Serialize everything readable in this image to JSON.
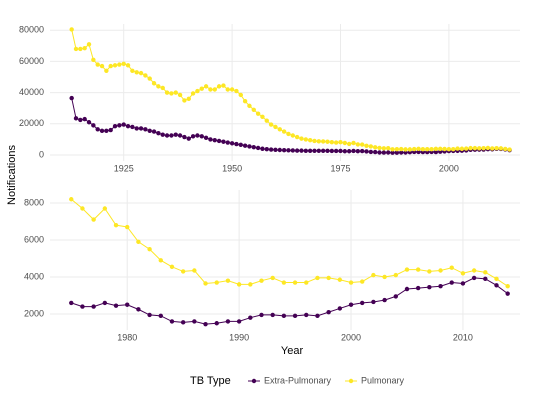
{
  "shared": {
    "y_label": "Notifications",
    "x_label": "Year",
    "legend_title": "TB Type"
  },
  "chart_data": [
    {
      "type": "line",
      "xlim": [
        1908,
        2016.4
      ],
      "ylim": [
        -3850,
        84000
      ],
      "xticks": [
        1925,
        1950,
        1975,
        2000
      ],
      "yticks": [
        0,
        20000,
        40000,
        60000,
        80000
      ],
      "grid": true,
      "x": [
        1913,
        1914,
        1915,
        1916,
        1917,
        1918,
        1919,
        1920,
        1921,
        1922,
        1923,
        1924,
        1925,
        1926,
        1927,
        1928,
        1929,
        1930,
        1931,
        1932,
        1933,
        1934,
        1935,
        1936,
        1937,
        1938,
        1939,
        1940,
        1941,
        1942,
        1943,
        1944,
        1945,
        1946,
        1947,
        1948,
        1949,
        1950,
        1951,
        1952,
        1953,
        1954,
        1955,
        1956,
        1957,
        1958,
        1959,
        1960,
        1961,
        1962,
        1963,
        1964,
        1965,
        1966,
        1967,
        1968,
        1969,
        1970,
        1971,
        1972,
        1973,
        1974,
        1975,
        1976,
        1977,
        1978,
        1979,
        1980,
        1981,
        1982,
        1983,
        1984,
        1985,
        1986,
        1987,
        1988,
        1989,
        1990,
        1991,
        1992,
        1993,
        1994,
        1995,
        1996,
        1997,
        1998,
        1999,
        2000,
        2001,
        2002,
        2003,
        2004,
        2005,
        2006,
        2007,
        2008,
        2009,
        2010,
        2011,
        2012,
        2013,
        2014
      ],
      "series": [
        {
          "name": "Extra-Pulmonary",
          "color": "#440154",
          "values": [
            36500,
            23500,
            22500,
            23000,
            21000,
            19000,
            16500,
            15500,
            15500,
            16000,
            18500,
            19000,
            19500,
            18500,
            18000,
            17000,
            17000,
            16500,
            15500,
            15000,
            14000,
            13000,
            12500,
            12500,
            13000,
            12500,
            11500,
            10500,
            12000,
            12500,
            12000,
            11000,
            10000,
            9500,
            9000,
            8500,
            8000,
            7500,
            7000,
            6500,
            6000,
            5500,
            5000,
            4500,
            4000,
            3700,
            3500,
            3300,
            3200,
            3100,
            3000,
            2900,
            2800,
            2800,
            2700,
            2700,
            2700,
            2700,
            2700,
            2700,
            2600,
            2600,
            2600,
            2400,
            2400,
            2600,
            2450,
            2500,
            2250,
            1950,
            1900,
            1600,
            1550,
            1600,
            1450,
            1500,
            1600,
            1600,
            1800,
            1950,
            1950,
            1900,
            1900,
            1950,
            1900,
            2100,
            2300,
            2500,
            2600,
            2650,
            2750,
            2950,
            3350,
            3400,
            3450,
            3500,
            3700,
            3650,
            3950,
            3900,
            3550,
            3100
          ]
        },
        {
          "name": "Pulmonary",
          "color": "#FDE725",
          "values": [
            80500,
            68000,
            68000,
            68500,
            71000,
            61000,
            58000,
            57000,
            54000,
            57000,
            57500,
            58000,
            58500,
            57500,
            54000,
            53000,
            52500,
            51000,
            49000,
            46000,
            44000,
            43000,
            40000,
            39500,
            40000,
            38500,
            35000,
            36000,
            39500,
            41000,
            42500,
            44000,
            42000,
            42000,
            44000,
            44500,
            42000,
            42000,
            41000,
            38500,
            34500,
            31500,
            29000,
            26500,
            24500,
            22000,
            19500,
            18000,
            16500,
            15000,
            13500,
            12500,
            11500,
            10500,
            10000,
            9500,
            9000,
            8800,
            8700,
            8500,
            8200,
            8000,
            8200,
            7700,
            7100,
            7700,
            6800,
            6700,
            5900,
            5500,
            4900,
            4550,
            4300,
            4350,
            3650,
            3700,
            3800,
            3600,
            3600,
            3800,
            3950,
            3700,
            3700,
            3700,
            3950,
            3950,
            3850,
            3700,
            3750,
            4100,
            4000,
            4100,
            4400,
            4400,
            4300,
            4350,
            4500,
            4200,
            4350,
            4250,
            3900,
            3500
          ]
        }
      ]
    },
    {
      "type": "line",
      "xlim": [
        1973.1,
        2015.1
      ],
      "ylim": [
        1135,
        8700
      ],
      "xticks": [
        1980,
        1990,
        2000,
        2010
      ],
      "yticks": [
        2000,
        4000,
        6000,
        8000
      ],
      "grid": true,
      "x": [
        1975,
        1976,
        1977,
        1978,
        1979,
        1980,
        1981,
        1982,
        1983,
        1984,
        1985,
        1986,
        1987,
        1988,
        1989,
        1990,
        1991,
        1992,
        1993,
        1994,
        1995,
        1996,
        1997,
        1998,
        1999,
        2000,
        2001,
        2002,
        2003,
        2004,
        2005,
        2006,
        2007,
        2008,
        2009,
        2010,
        2011,
        2012,
        2013,
        2014
      ],
      "series": [
        {
          "name": "Extra-Pulmonary",
          "color": "#440154",
          "values": [
            2600,
            2400,
            2400,
            2600,
            2450,
            2500,
            2250,
            1950,
            1900,
            1600,
            1550,
            1600,
            1450,
            1500,
            1600,
            1600,
            1800,
            1950,
            1950,
            1900,
            1900,
            1950,
            1900,
            2100,
            2300,
            2500,
            2600,
            2650,
            2750,
            2950,
            3350,
            3400,
            3450,
            3500,
            3700,
            3650,
            3950,
            3900,
            3550,
            3100
          ]
        },
        {
          "name": "Pulmonary",
          "color": "#FDE725",
          "values": [
            8200,
            7700,
            7100,
            7700,
            6800,
            6700,
            5900,
            5500,
            4900,
            4550,
            4300,
            4350,
            3650,
            3700,
            3800,
            3600,
            3600,
            3800,
            3950,
            3700,
            3700,
            3700,
            3950,
            3950,
            3850,
            3700,
            3750,
            4100,
            4000,
            4100,
            4400,
            4400,
            4300,
            4350,
            4500,
            4200,
            4350,
            4250,
            3900,
            3500
          ]
        }
      ]
    }
  ]
}
